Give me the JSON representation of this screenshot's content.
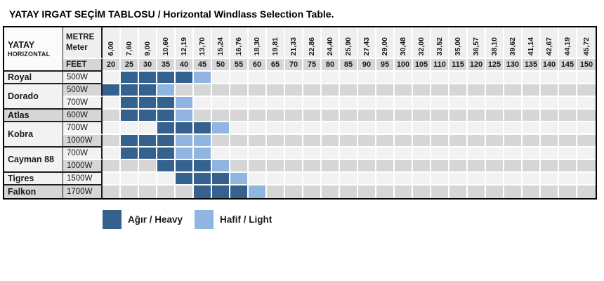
{
  "title": "YATAY IRGAT SEÇİM TABLOSU / Horizontal Windlass Selection Table.",
  "header": {
    "row_label_top": "YATAY",
    "row_label_bottom": "HORIZONTAL",
    "metre_label": "METRE",
    "meter_label": "Meter",
    "feet_label": "FEET"
  },
  "columns": {
    "meters": [
      "6,00",
      "7,60",
      "9,00",
      "10,60",
      "12,19",
      "13,70",
      "15,24",
      "16,76",
      "18,30",
      "19,81",
      "21,33",
      "22,86",
      "24,40",
      "25,90",
      "27,43",
      "29,00",
      "30,48",
      "32,00",
      "33,52",
      "35,00",
      "36,57",
      "38,10",
      "39,62",
      "41,14",
      "42,67",
      "44,19",
      "45,72"
    ],
    "feet": [
      20,
      25,
      30,
      35,
      40,
      45,
      50,
      55,
      60,
      65,
      70,
      75,
      80,
      85,
      90,
      95,
      100,
      105,
      110,
      115,
      120,
      125,
      130,
      135,
      140,
      145,
      150
    ]
  },
  "rows": [
    {
      "model": "Royal",
      "power": "500W",
      "heavy": [
        25,
        30,
        35,
        40
      ],
      "light": [
        45
      ]
    },
    {
      "model": "Dorado",
      "power": "500W",
      "heavy": [
        20,
        25,
        30
      ],
      "light": [
        35
      ]
    },
    {
      "model": "Dorado",
      "power": "700W",
      "heavy": [
        25,
        30,
        35
      ],
      "light": [
        40
      ]
    },
    {
      "model": "Atlas",
      "power": "600W",
      "heavy": [
        25,
        30,
        35
      ],
      "light": [
        40
      ]
    },
    {
      "model": "Kobra",
      "power": "700W",
      "heavy": [
        35,
        40,
        45
      ],
      "light": [
        50
      ]
    },
    {
      "model": "Kobra",
      "power": "1000W",
      "heavy": [
        25,
        30,
        35
      ],
      "light": [
        40,
        45
      ]
    },
    {
      "model": "Cayman 88",
      "power": "700W",
      "heavy": [
        25,
        30,
        35
      ],
      "light": [
        40,
        45
      ]
    },
    {
      "model": "Cayman 88",
      "power": "1000W",
      "heavy": [
        35,
        40,
        45
      ],
      "light": [
        50
      ]
    },
    {
      "model": "Tigres",
      "power": "1500W",
      "heavy": [
        40,
        45,
        50
      ],
      "light": [
        55
      ]
    },
    {
      "model": "Falkon",
      "power": "1700W",
      "heavy": [
        45,
        50,
        55
      ],
      "light": [
        60
      ]
    }
  ],
  "legend": [
    {
      "label": "Ağır / Heavy",
      "color": "#35618f"
    },
    {
      "label": "Hafif / Light",
      "color": "#90b5e0"
    }
  ],
  "colors": {
    "heavy": "#35618f",
    "light": "#90b5e0",
    "stripe_light": "#f2f2f2",
    "stripe_dark": "#d6d6d6",
    "meter_header_bg": "#efefef",
    "feet_header_bg": "#d6d6d6",
    "border": "#1f1f1f"
  }
}
